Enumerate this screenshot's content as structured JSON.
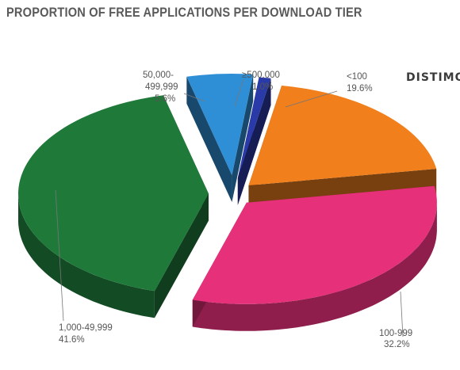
{
  "title": "PROPORTION OF FREE APPLICATIONS PER DOWNLOAD TIER",
  "brand": "DISTIMO",
  "colors": {
    "orange": "#f07f1c",
    "pink": "#e6307a",
    "green": "#1f7a3a",
    "blue": "#2f8fd6",
    "indigo": "#2a3aa8"
  },
  "chart_data": {
    "type": "pie",
    "title": "PROPORTION OF FREE APPLICATIONS PER DOWNLOAD TIER",
    "legend": "none",
    "slices": [
      {
        "label": "<100",
        "value": 19.6,
        "value_label": "19.6%",
        "color": "#f07f1c"
      },
      {
        "label": "100-999",
        "value": 32.2,
        "value_label": "32.2%",
        "color": "#e6307a"
      },
      {
        "label": "1,000-49,999",
        "value": 41.6,
        "value_label": "41.6%",
        "color": "#1f7a3a"
      },
      {
        "label": "50,000-499,999",
        "value": 5.6,
        "value_label": "5.6%",
        "color": "#2f8fd6"
      },
      {
        "label": "≥500,000",
        "value": 1.0,
        "value_label": "1.0%",
        "color": "#2a3aa8"
      }
    ]
  }
}
